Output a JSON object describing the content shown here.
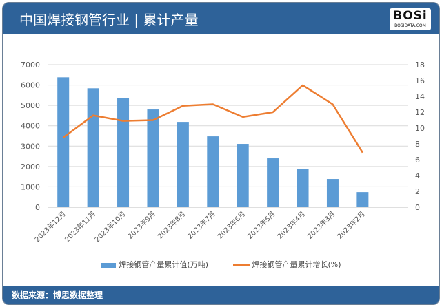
{
  "header": {
    "title": "中国焊接钢管行业 | 累计产量",
    "logo_text": "BOSi",
    "logo_sub": "BOSIDATA.COM"
  },
  "footer": {
    "source": "数据来源：博思数据整理"
  },
  "colors": {
    "bar": "#5b9bd5",
    "line": "#ed7d31",
    "header": "#2e6299"
  },
  "chart_data": {
    "type": "bar+line",
    "categories": [
      "2023年12月",
      "2023年11月",
      "2023年10月",
      "2023年9月",
      "2023年8月",
      "2023年7月",
      "2023年6月",
      "2023年5月",
      "2023年4月",
      "2023年3月",
      "2023年2月"
    ],
    "series": [
      {
        "name": "焊接钢管产量累计值(万吨)",
        "type": "bar",
        "axis": "left",
        "values": [
          6380,
          5840,
          5370,
          4800,
          4190,
          3480,
          3110,
          2400,
          1860,
          1385,
          740
        ]
      },
      {
        "name": "焊接钢管产量累计增长(%)",
        "type": "line",
        "axis": "right",
        "values": [
          8.8,
          11.6,
          10.9,
          11.0,
          12.8,
          13.0,
          11.4,
          12.0,
          15.4,
          13.0,
          6.9
        ]
      }
    ],
    "ylim": [
      0,
      7000
    ],
    "yticks": [
      0,
      1000,
      2000,
      3000,
      4000,
      5000,
      6000,
      7000
    ],
    "y2lim": [
      0,
      18
    ],
    "y2ticks": [
      0,
      2,
      4,
      6,
      8,
      10,
      12,
      14,
      16,
      18
    ],
    "grid": true,
    "legend": "bottom"
  }
}
